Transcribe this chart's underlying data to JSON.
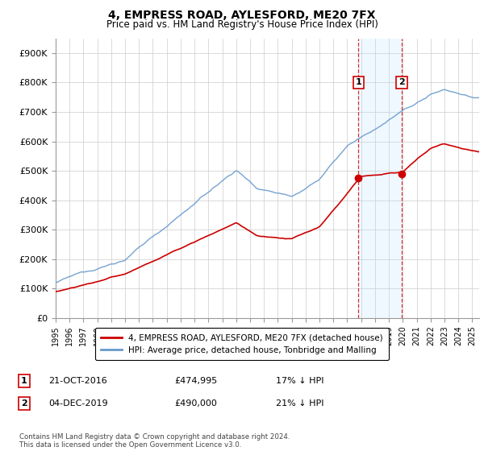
{
  "title": "4, EMPRESS ROAD, AYLESFORD, ME20 7FX",
  "subtitle": "Price paid vs. HM Land Registry's House Price Index (HPI)",
  "ylabel_ticks": [
    "£0",
    "£100K",
    "£200K",
    "£300K",
    "£400K",
    "£500K",
    "£600K",
    "£700K",
    "£800K",
    "£900K"
  ],
  "ytick_values": [
    0,
    100000,
    200000,
    300000,
    400000,
    500000,
    600000,
    700000,
    800000,
    900000
  ],
  "ylim": [
    0,
    950000
  ],
  "hpi_color": "#6699cc",
  "price_color": "#cc0000",
  "annotation_color": "#cc0000",
  "marker1_date": 2016.8,
  "marker1_price": 474995,
  "marker1_label": "1",
  "marker2_date": 2019.92,
  "marker2_price": 490000,
  "marker2_label": "2",
  "marker1_hpi_y": 800000,
  "marker2_hpi_y": 800000,
  "legend_price_label": "4, EMPRESS ROAD, AYLESFORD, ME20 7FX (detached house)",
  "legend_hpi_label": "HPI: Average price, detached house, Tonbridge and Malling",
  "footer": "Contains HM Land Registry data © Crown copyright and database right 2024.\nThis data is licensed under the Open Government Licence v3.0.",
  "xmin": 1995,
  "xmax": 2025.5,
  "figwidth": 6.0,
  "figheight": 5.6
}
